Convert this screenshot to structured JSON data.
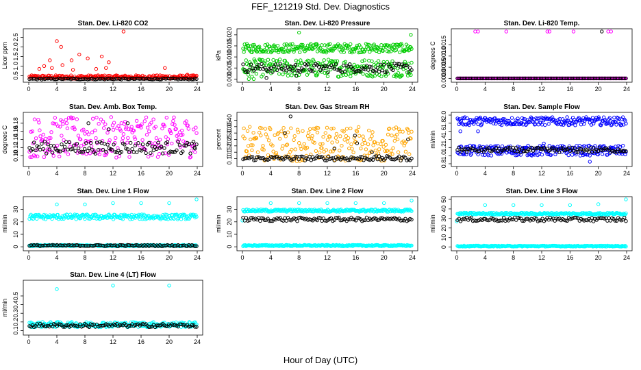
{
  "figure": {
    "title": "FEF_121219  Std. Dev. Diagnostics",
    "xlabel": "Hour of Day (UTC)"
  },
  "chart_data": [
    {
      "type": "scatter",
      "title": "Stan. Dev. Li-820 CO2",
      "ylabel": "Licor ppm",
      "xlim": [
        0,
        24
      ],
      "ylim": [
        0.3,
        2.8
      ],
      "xticks": [
        0,
        4,
        8,
        12,
        16,
        20,
        24
      ],
      "yticks": [
        0.5,
        1.0,
        1.5,
        2.0,
        2.5
      ],
      "ytick_labels": [
        "0.5",
        "1.0",
        "1.5",
        "2.0",
        "2.5"
      ],
      "series": [
        {
          "color": "#ff0000",
          "y_base": [
            0.33,
            0.52
          ],
          "outliers": [
            [
              1.5,
              0.85
            ],
            [
              2.2,
              1.0
            ],
            [
              3.0,
              1.3
            ],
            [
              3.3,
              0.9
            ],
            [
              4.0,
              2.3
            ],
            [
              4.6,
              2.0
            ],
            [
              4.8,
              1.05
            ],
            [
              6.1,
              1.3
            ],
            [
              6.3,
              0.8
            ],
            [
              7.2,
              1.6
            ],
            [
              8.4,
              1.4
            ],
            [
              9.6,
              0.85
            ],
            [
              10.4,
              1.5
            ],
            [
              11.0,
              0.9
            ],
            [
              11.4,
              1.2
            ],
            [
              13.5,
              2.8
            ],
            [
              19.4,
              0.9
            ],
            [
              22.6,
              0.55
            ]
          ]
        },
        {
          "color": "#000000",
          "y_base": [
            0.3,
            0.36
          ],
          "outliers": []
        }
      ]
    },
    {
      "type": "scatter",
      "title": "Stan. Dev. Li-820 Pressure",
      "ylabel": "kPa",
      "xlim": [
        0,
        24
      ],
      "ylim": [
        -0.0002,
        0.0215
      ],
      "xticks": [
        0,
        4,
        8,
        12,
        16,
        20,
        24
      ],
      "yticks": [
        0.0,
        0.005,
        0.01,
        0.015,
        0.02
      ],
      "ytick_labels": [
        "0.000",
        "0.005",
        "0.010",
        "0.015",
        "0.020"
      ],
      "series": [
        {
          "color": "#00cc00",
          "y_base": [
            0.012,
            0.016
          ],
          "y_band2": [
            0.001,
            0.009
          ],
          "outliers": [
            [
              0.9,
              0.0
            ],
            [
              1.6,
              0.0
            ],
            [
              8.0,
              0.021
            ],
            [
              23.8,
              0.02
            ]
          ]
        },
        {
          "color": "#000000",
          "y_base": [
            0.003,
            0.007
          ],
          "outliers": [
            [
              3.4,
              0.0005
            ],
            [
              7.6,
              0.0015
            ]
          ]
        }
      ]
    },
    {
      "type": "scatter",
      "title": "Stan. Dev. Li-820 Temp.",
      "ylabel": "degrees C",
      "xlim": [
        0,
        24
      ],
      "ylim": [
        -5e-05,
        0.0021
      ],
      "xticks": [
        0,
        4,
        8,
        12,
        16,
        20,
        24
      ],
      "yticks": [
        0.0,
        0.0005,
        0.001,
        0.0015
      ],
      "ytick_labels": [
        "0.0000",
        "0.0005",
        "0.0010",
        "0.0015"
      ],
      "series": [
        {
          "color": "#ff00ff",
          "y_base": [
            0.0,
            0.0
          ],
          "outliers": [
            [
              2.6,
              0.0021
            ],
            [
              3.0,
              0.0021
            ],
            [
              7.0,
              0.0021
            ],
            [
              12.8,
              0.0021
            ],
            [
              13.1,
              0.0021
            ],
            [
              16.5,
              0.0021
            ],
            [
              21.4,
              0.0021
            ],
            [
              21.8,
              0.0021
            ],
            [
              20.5,
              0.0
            ]
          ]
        },
        {
          "color": "#000000",
          "y_base": [
            0.0,
            0.0
          ],
          "outliers": [
            [
              20.5,
              0.0021
            ]
          ]
        }
      ]
    },
    {
      "type": "scatter",
      "title": "Stan. Dev. Amb. Box Temp.",
      "ylabel": "degrees C",
      "xlim": [
        0,
        24
      ],
      "ylim": [
        0.08,
        0.2
      ],
      "xticks": [
        0,
        4,
        8,
        12,
        16,
        20,
        24
      ],
      "yticks": [
        0.1,
        0.12,
        0.14,
        0.16,
        0.18
      ],
      "ytick_labels": [
        "0.10",
        "0.12",
        "0.14",
        "0.16",
        "0.18"
      ],
      "series": [
        {
          "color": "#ff00ff",
          "y_base": [
            0.095,
            0.195
          ],
          "outliers": []
        },
        {
          "color": "#000000",
          "y_base": [
            0.105,
            0.135
          ],
          "outliers": [
            [
              8.5,
              0.18
            ],
            [
              11.4,
              0.165
            ],
            [
              14.1,
              0.18
            ],
            [
              23.6,
              0.12
            ]
          ]
        }
      ]
    },
    {
      "type": "scatter",
      "title": "Stan. Dev. Gas Stream RH",
      "ylabel": "percent",
      "xlim": [
        0,
        24
      ],
      "ylim": [
        0.06,
        0.44
      ],
      "xticks": [
        0,
        4,
        8,
        12,
        16,
        20,
        24
      ],
      "yticks": [
        0.1,
        0.15,
        0.2,
        0.25,
        0.3,
        0.35,
        0.4
      ],
      "ytick_labels": [
        "0.10",
        "0.15",
        "0.20",
        "0.25",
        "0.30",
        "0.35",
        "0.40"
      ],
      "series": [
        {
          "color": "#ffa500",
          "y_base": [
            0.08,
            0.35
          ],
          "outliers": []
        },
        {
          "color": "#000000",
          "y_base": [
            0.085,
            0.12
          ],
          "outliers": [
            [
              6.0,
              0.3
            ],
            [
              6.8,
              0.43
            ],
            [
              13.0,
              0.18
            ],
            [
              15.9,
              0.28
            ],
            [
              16.2,
              0.22
            ],
            [
              18.3,
              0.15
            ],
            [
              23.4,
              0.25
            ]
          ]
        }
      ]
    },
    {
      "type": "scatter",
      "title": "Stan. Dev. Sample Flow",
      "ylabel": "ml/min",
      "xlim": [
        0,
        24
      ],
      "ylim": [
        0.8,
        2.0
      ],
      "xticks": [
        0,
        4,
        8,
        12,
        16,
        20,
        24
      ],
      "yticks": [
        0.8,
        1.0,
        1.2,
        1.4,
        1.6,
        1.8,
        2.0
      ],
      "ytick_labels": [
        "0.8",
        "1.0",
        "1.2",
        "1.4",
        "1.6",
        "1.8",
        "2.0"
      ],
      "series": [
        {
          "color": "#0000ff",
          "y_base": [
            1.75,
            1.95
          ],
          "y_band2": [
            1.0,
            1.25
          ],
          "outliers": [
            [
              0.5,
              1.6
            ],
            [
              3.0,
              1.6
            ],
            [
              18.8,
              0.85
            ],
            [
              12.3,
              1.3
            ]
          ]
        },
        {
          "color": "#000000",
          "y_base": [
            1.08,
            1.2
          ],
          "outliers": []
        }
      ]
    },
    {
      "type": "scatter",
      "title": "Stan. Dev. Line 1 Flow",
      "ylabel": "ml/min",
      "xlim": [
        0,
        24
      ],
      "ylim": [
        -1,
        38
      ],
      "xticks": [
        0,
        4,
        8,
        12,
        16,
        20,
        24
      ],
      "yticks": [
        0,
        10,
        20,
        30
      ],
      "ytick_labels": [
        "0",
        "10",
        "20",
        "30"
      ],
      "series": [
        {
          "color": "#00ffff",
          "y_base": [
            22,
            26
          ],
          "y_band2": [
            0.5,
            1.5
          ],
          "outliers": [
            [
              4.0,
              34
            ],
            [
              8.0,
              34
            ],
            [
              12.0,
              35
            ],
            [
              16.0,
              35
            ],
            [
              20.0,
              35
            ],
            [
              23.9,
              38
            ]
          ]
        },
        {
          "color": "#000000",
          "y_base": [
            0.5,
            1.5
          ],
          "outliers": []
        }
      ]
    },
    {
      "type": "scatter",
      "title": "Stan. Dev. Line 2 Flow",
      "ylabel": "ml/min",
      "xlim": [
        0,
        24
      ],
      "ylim": [
        -1,
        38
      ],
      "xticks": [
        0,
        4,
        8,
        12,
        16,
        20,
        24
      ],
      "yticks": [
        0,
        10,
        20,
        30
      ],
      "ytick_labels": [
        "0",
        "10",
        "20",
        "30"
      ],
      "series": [
        {
          "color": "#00ffff",
          "y_base": [
            28,
            30
          ],
          "y_band2": [
            0.5,
            1.5
          ],
          "outliers": [
            [
              0.0,
              21
            ],
            [
              4.0,
              35
            ],
            [
              8.0,
              35
            ],
            [
              12.0,
              35
            ],
            [
              16.0,
              35
            ],
            [
              20.0,
              35
            ],
            [
              23.9,
              37
            ]
          ]
        },
        {
          "color": "#000000",
          "y_base": [
            20.5,
            23.5
          ],
          "outliers": []
        }
      ]
    },
    {
      "type": "scatter",
      "title": "Stan. Dev. Line 3 Flow",
      "ylabel": "ml/min",
      "xlim": [
        0,
        24
      ],
      "ylim": [
        -1,
        50
      ],
      "xticks": [
        0,
        4,
        8,
        12,
        16,
        20,
        24
      ],
      "yticks": [
        0,
        10,
        20,
        30,
        40,
        50
      ],
      "ytick_labels": [
        "0",
        "10",
        "20",
        "30",
        "40",
        "50"
      ],
      "series": [
        {
          "color": "#00ffff",
          "y_base": [
            34,
            36
          ],
          "y_band2": [
            0.5,
            1.5
          ],
          "outliers": [
            [
              0.0,
              27
            ],
            [
              4.0,
              44
            ],
            [
              8.0,
              44
            ],
            [
              12.0,
              44
            ],
            [
              16.0,
              44
            ],
            [
              20.0,
              45
            ],
            [
              23.9,
              50
            ]
          ]
        },
        {
          "color": "#000000",
          "y_base": [
            27,
            31
          ],
          "outliers": []
        }
      ]
    },
    {
      "type": "scatter",
      "title": "Stan. Dev. Line 4 (LT) Flow",
      "ylabel": "ml/min",
      "xlim": [
        0,
        24
      ],
      "ylim": [
        0.08,
        0.65
      ],
      "xticks": [
        0,
        4,
        8,
        12,
        16,
        20,
        24
      ],
      "yticks": [
        0.1,
        0.2,
        0.3,
        0.4,
        0.5
      ],
      "ytick_labels": [
        "0.1",
        "0.2",
        "0.3",
        "0.4",
        "0.5"
      ],
      "series": [
        {
          "color": "#00ffff",
          "y_base": [
            0.14,
            0.2
          ],
          "outliers": [
            [
              4.0,
              0.58
            ],
            [
              12.0,
              0.62
            ],
            [
              20.0,
              0.62
            ]
          ]
        },
        {
          "color": "#000000",
          "y_base": [
            0.14,
            0.18
          ],
          "outliers": []
        }
      ]
    }
  ]
}
